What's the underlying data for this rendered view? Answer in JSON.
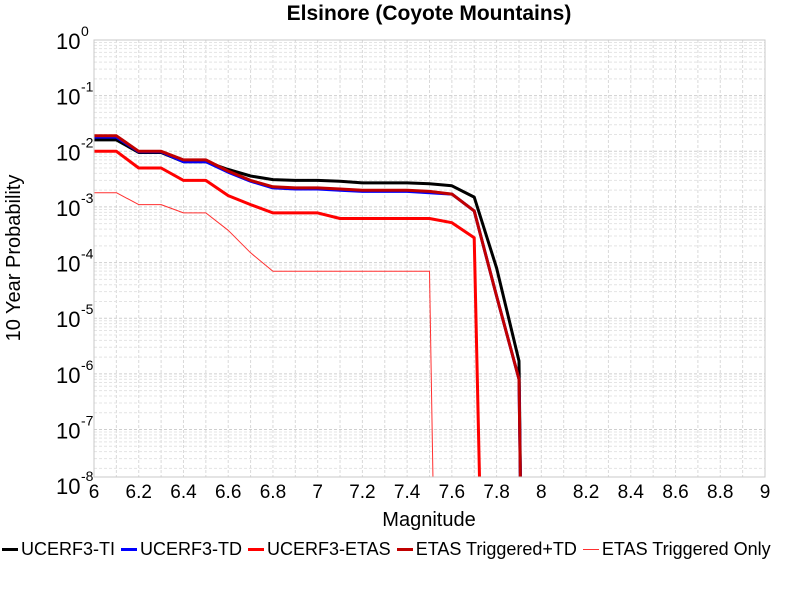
{
  "chart_data": {
    "type": "line",
    "title": "Elsinore (Coyote Mountains)",
    "xlabel": "Magnitude",
    "ylabel": "10 Year Probability",
    "xlim": [
      6,
      9
    ],
    "ylim": [
      1.4e-08,
      1
    ],
    "yscale": "log",
    "grid": true,
    "legend_position": "bottom",
    "x_ticks": [
      "6",
      "6.2",
      "6.4",
      "6.6",
      "6.8",
      "7",
      "7.2",
      "7.4",
      "7.6",
      "7.8",
      "8",
      "8.2",
      "8.4",
      "8.6",
      "8.8",
      "9"
    ],
    "y_ticks": [
      {
        "base": "10",
        "exp": "0",
        "value": 1
      },
      {
        "base": "10",
        "exp": "-1",
        "value": 0.1
      },
      {
        "base": "10",
        "exp": "-2",
        "value": 0.01
      },
      {
        "base": "10",
        "exp": "-3",
        "value": 0.001
      },
      {
        "base": "10",
        "exp": "-4",
        "value": 0.0001
      },
      {
        "base": "10",
        "exp": "-5",
        "value": 1e-05
      },
      {
        "base": "10",
        "exp": "-6",
        "value": 1e-06
      },
      {
        "base": "10",
        "exp": "-7",
        "value": 1e-07
      },
      {
        "base": "10",
        "exp": "-8",
        "value": 1e-08
      }
    ],
    "series": [
      {
        "name": "UCERF3-TI",
        "color": "#000000",
        "width": 3,
        "x": [
          6.0,
          6.1,
          6.2,
          6.3,
          6.4,
          6.5,
          6.6,
          6.7,
          6.8,
          6.9,
          7.0,
          7.1,
          7.2,
          7.3,
          7.4,
          7.5,
          7.6,
          7.7,
          7.8,
          7.9,
          7.91
        ],
        "y": [
          0.016,
          0.016,
          0.0095,
          0.0095,
          0.0065,
          0.0065,
          0.0047,
          0.0036,
          0.0031,
          0.003,
          0.003,
          0.0029,
          0.0027,
          0.0027,
          0.0027,
          0.0026,
          0.0024,
          0.0015,
          8e-05,
          1.7e-06,
          1e-09
        ]
      },
      {
        "name": "UCERF3-TD",
        "color": "#0000ff",
        "width": 3,
        "x": [
          6.0,
          6.1,
          6.2,
          6.3,
          6.4,
          6.5,
          6.6,
          6.7,
          6.8,
          6.9,
          7.0,
          7.1,
          7.2,
          7.3,
          7.4,
          7.5,
          7.6,
          7.7,
          7.8,
          7.9,
          7.91
        ],
        "y": [
          0.018,
          0.018,
          0.0098,
          0.0098,
          0.0065,
          0.0065,
          0.0042,
          0.0029,
          0.0022,
          0.0021,
          0.0021,
          0.002,
          0.0019,
          0.0019,
          0.0019,
          0.0018,
          0.0017,
          0.00085,
          2.5e-05,
          8e-07,
          1e-09
        ]
      },
      {
        "name": "UCERF3-ETAS",
        "color": "#ff0000",
        "width": 3,
        "x": [
          6.0,
          6.1,
          6.2,
          6.3,
          6.4,
          6.5,
          6.6,
          6.7,
          6.8,
          6.9,
          7.0,
          7.1,
          7.2,
          7.3,
          7.4,
          7.5,
          7.6,
          7.7,
          7.73
        ],
        "y": [
          0.01,
          0.01,
          0.005,
          0.005,
          0.003,
          0.003,
          0.0016,
          0.0011,
          0.00078,
          0.00078,
          0.00078,
          0.00062,
          0.00062,
          0.00062,
          0.00062,
          0.00062,
          0.00052,
          0.00028,
          1e-09
        ]
      },
      {
        "name": "ETAS Triggered+TD",
        "color": "#c00000",
        "width": 3,
        "x": [
          6.0,
          6.1,
          6.2,
          6.3,
          6.4,
          6.5,
          6.6,
          6.7,
          6.8,
          6.9,
          7.0,
          7.1,
          7.2,
          7.3,
          7.4,
          7.5,
          7.6,
          7.7,
          7.8,
          7.9,
          7.91
        ],
        "y": [
          0.019,
          0.019,
          0.01,
          0.01,
          0.007,
          0.007,
          0.0044,
          0.003,
          0.0023,
          0.0022,
          0.0022,
          0.0021,
          0.002,
          0.002,
          0.002,
          0.0019,
          0.0017,
          0.00085,
          2.5e-05,
          8e-07,
          1e-09
        ]
      },
      {
        "name": "ETAS Triggered Only",
        "color": "#ff3030",
        "width": 1,
        "x": [
          6.0,
          6.1,
          6.2,
          6.3,
          6.4,
          6.5,
          6.6,
          6.7,
          6.8,
          6.9,
          7.0,
          7.1,
          7.2,
          7.3,
          7.4,
          7.5,
          7.52
        ],
        "y": [
          0.0018,
          0.0018,
          0.0011,
          0.0011,
          0.00078,
          0.00078,
          0.00038,
          0.00015,
          7e-05,
          7e-05,
          7e-05,
          7e-05,
          7e-05,
          7e-05,
          7e-05,
          7e-05,
          1e-09
        ]
      }
    ]
  }
}
